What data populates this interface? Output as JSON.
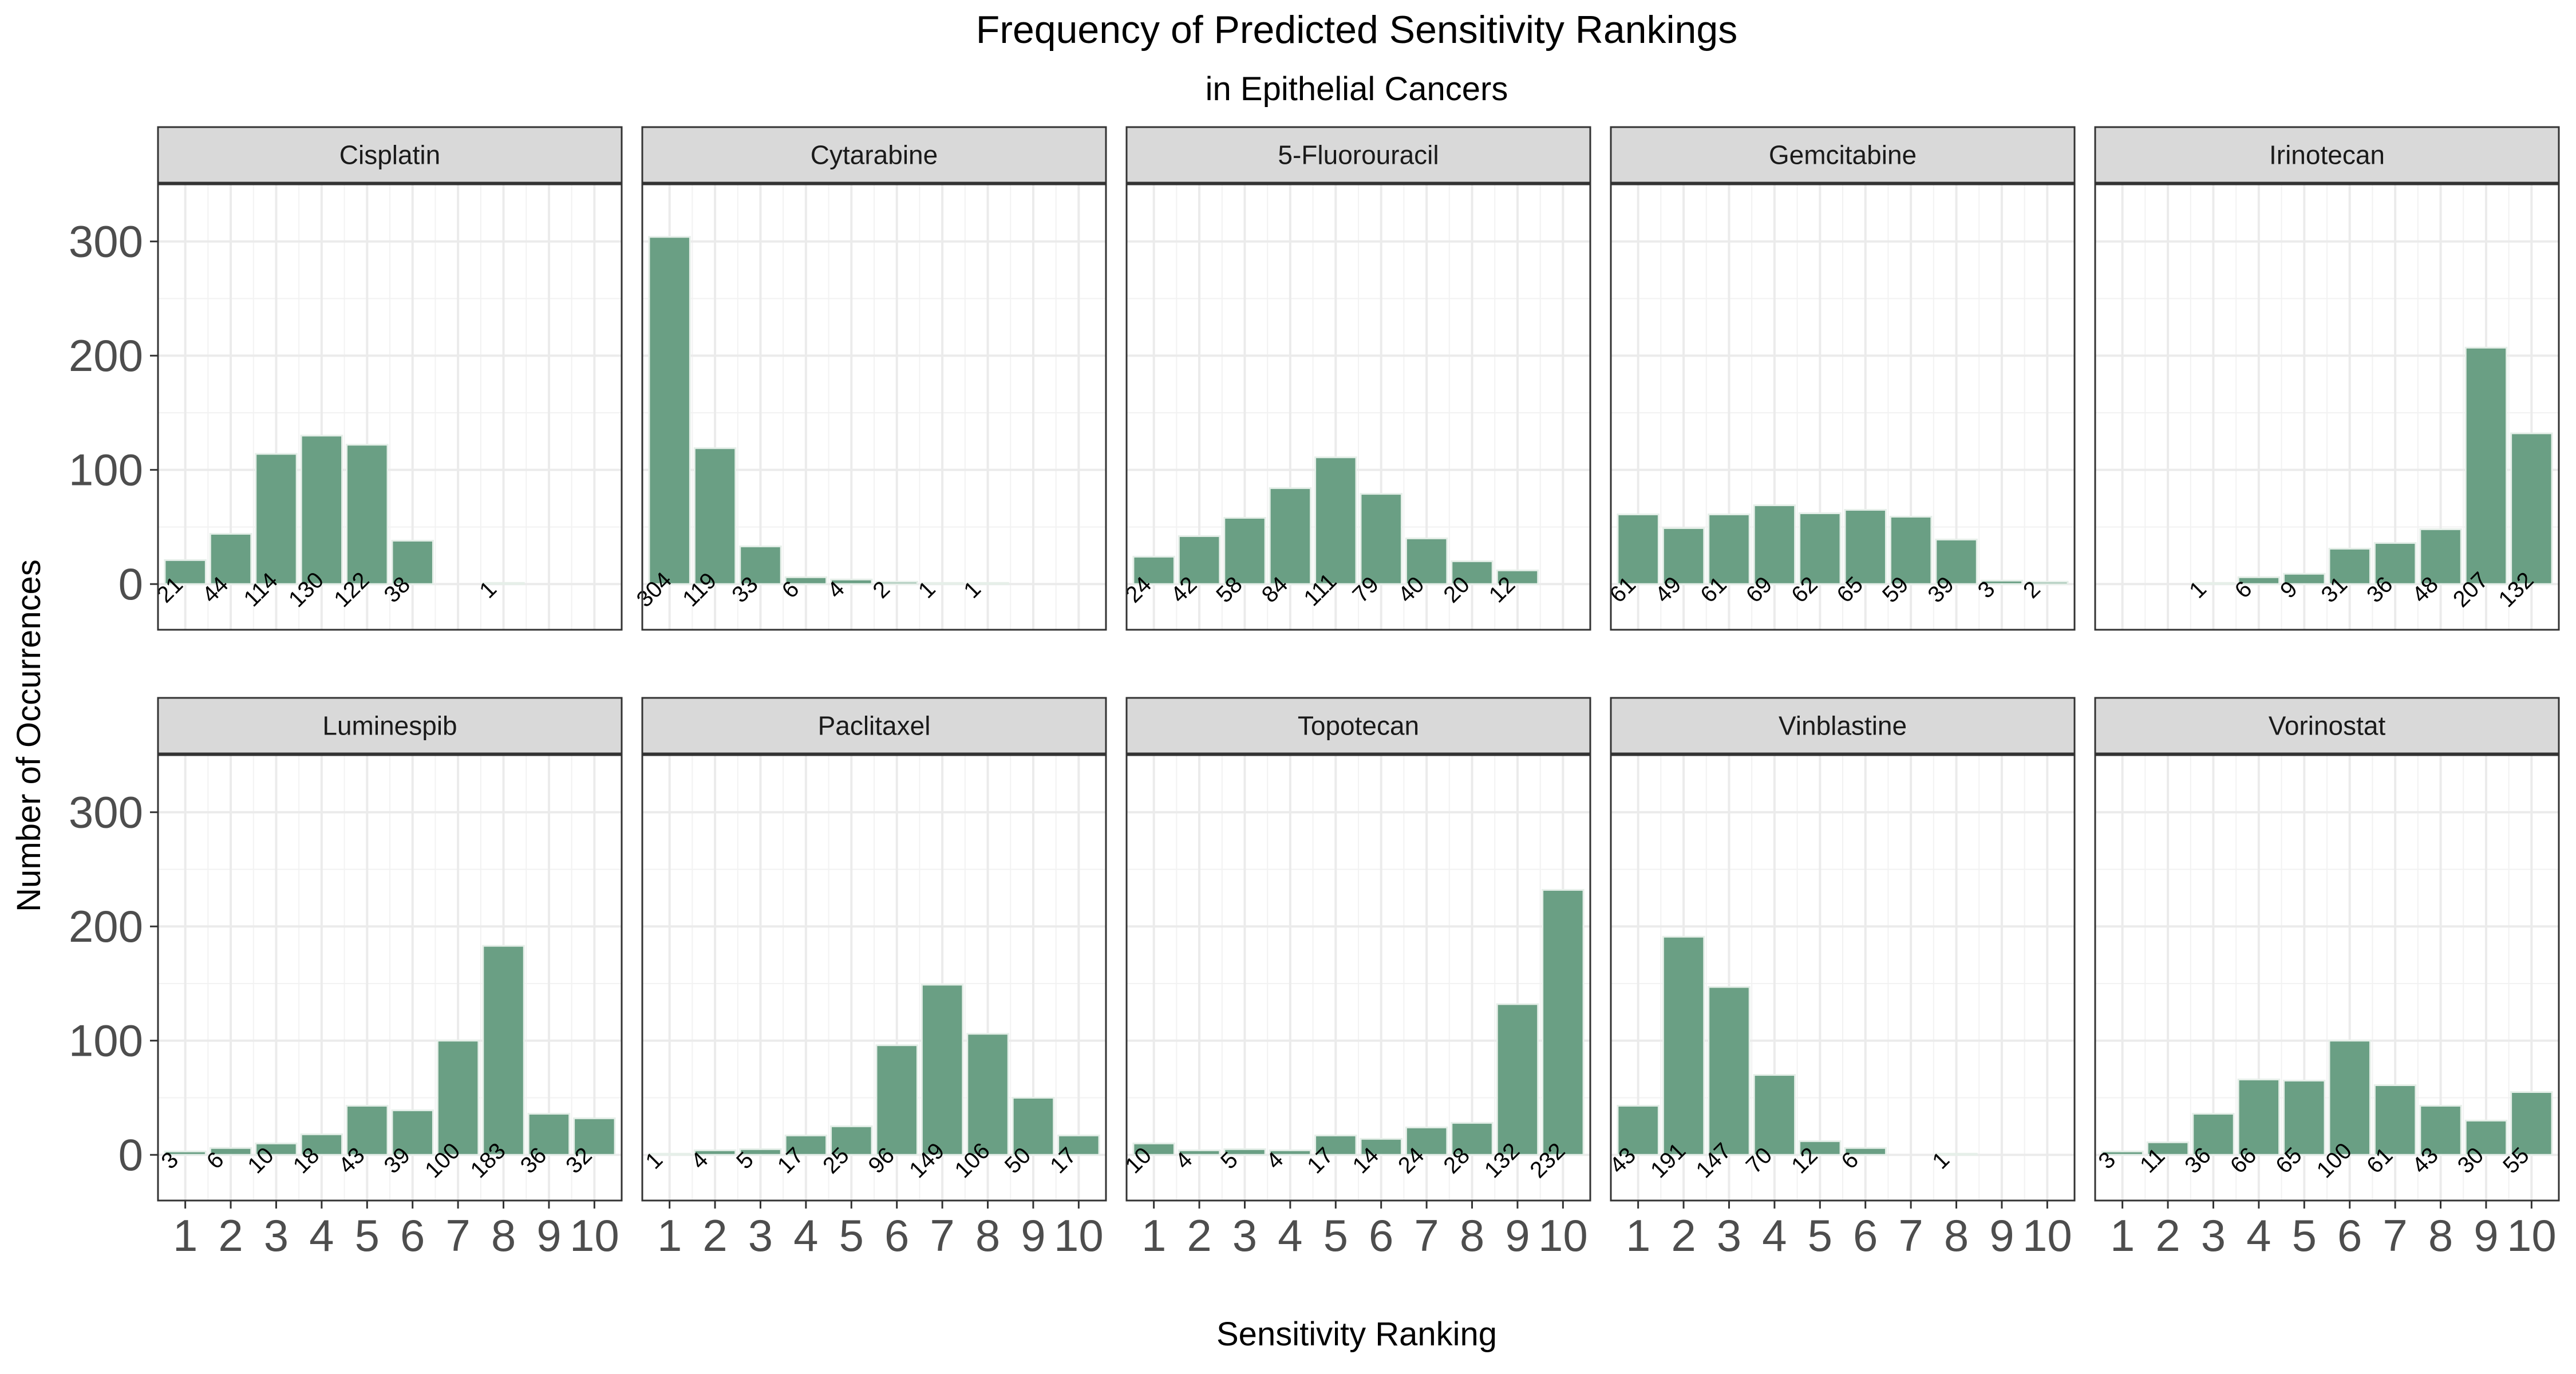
{
  "chart_data": {
    "type": "bar",
    "title": "Frequency of Predicted Sensitivity Rankings",
    "subtitle": "in Epithelial Cancers",
    "xlabel": "Sensitivity Ranking",
    "ylabel": "Number of Occurrences",
    "x_ticks": [
      "1",
      "2",
      "3",
      "4",
      "5",
      "6",
      "7",
      "8",
      "9",
      "10"
    ],
    "y_ticks": [
      0,
      100,
      200,
      300
    ],
    "ylim": [
      -40,
      350
    ],
    "grid": true,
    "bar_color": "#6a9f84",
    "bar_edge_color": "#e6efe9",
    "strip_fill": "#d9d9d9",
    "panels": [
      {
        "name": "Cisplatin",
        "values": [
          21,
          44,
          114,
          130,
          122,
          38,
          null,
          1,
          null,
          null
        ]
      },
      {
        "name": "Cytarabine",
        "values": [
          304,
          119,
          33,
          6,
          4,
          2,
          1,
          1,
          null,
          null
        ]
      },
      {
        "name": "5-Fluorouracil",
        "values": [
          24,
          42,
          58,
          84,
          111,
          79,
          40,
          20,
          12,
          null
        ]
      },
      {
        "name": "Gemcitabine",
        "values": [
          61,
          49,
          61,
          69,
          62,
          65,
          59,
          39,
          3,
          2
        ]
      },
      {
        "name": "Irinotecan",
        "values": [
          null,
          null,
          1,
          6,
          9,
          31,
          36,
          48,
          207,
          132
        ]
      },
      {
        "name": "Luminespib",
        "values": [
          3,
          6,
          10,
          18,
          43,
          39,
          100,
          183,
          36,
          32
        ]
      },
      {
        "name": "Paclitaxel",
        "values": [
          1,
          4,
          5,
          17,
          25,
          96,
          149,
          106,
          50,
          17
        ]
      },
      {
        "name": "Topotecan",
        "values": [
          10,
          4,
          5,
          4,
          17,
          14,
          24,
          28,
          132,
          232
        ]
      },
      {
        "name": "Vinblastine",
        "values": [
          43,
          191,
          147,
          70,
          12,
          6,
          null,
          1,
          null,
          null
        ]
      },
      {
        "name": "Vorinostat",
        "values": [
          3,
          11,
          36,
          66,
          65,
          100,
          61,
          43,
          30,
          55
        ]
      }
    ]
  }
}
